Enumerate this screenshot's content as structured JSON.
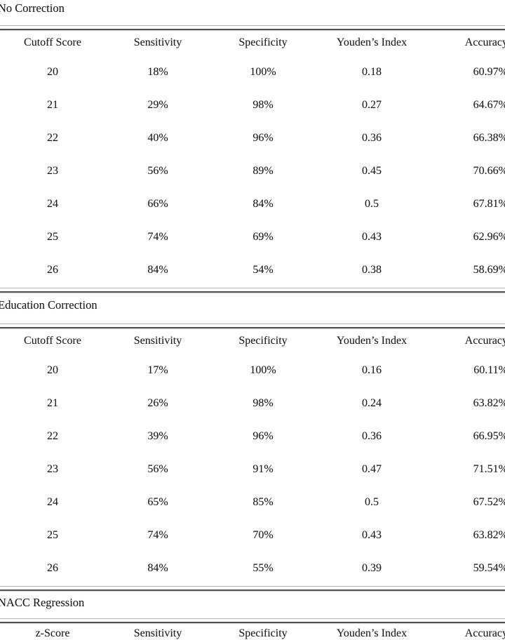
{
  "page": {
    "background": "#ffffff",
    "text_color": "#1d1d1d",
    "rule_light_color": "#b4b4b4",
    "rule_dark_color": "#505050"
  },
  "sections": [
    {
      "title": "No Correction",
      "columns": [
        "Cutoff Score",
        "Sensitivity",
        "Specificity",
        "Youden’s Index",
        "Accuracy"
      ],
      "rows": [
        [
          "20",
          "18%",
          "100%",
          "0.18",
          "60.97%"
        ],
        [
          "21",
          "29%",
          "98%",
          "0.27",
          "64.67%"
        ],
        [
          "22",
          "40%",
          "96%",
          "0.36",
          "66.38%"
        ],
        [
          "23",
          "56%",
          "89%",
          "0.45",
          "70.66%"
        ],
        [
          "24",
          "66%",
          "84%",
          "0.5",
          "67.81%"
        ],
        [
          "25",
          "74%",
          "69%",
          "0.43",
          "62.96%"
        ],
        [
          "26",
          "84%",
          "54%",
          "0.38",
          "58.69%"
        ]
      ]
    },
    {
      "title": "Education Correction",
      "columns": [
        "Cutoff Score",
        "Sensitivity",
        "Specificity",
        "Youden’s Index",
        "Accuracy"
      ],
      "rows": [
        [
          "20",
          "17%",
          "100%",
          "0.16",
          "60.11%"
        ],
        [
          "21",
          "26%",
          "98%",
          "0.24",
          "63.82%"
        ],
        [
          "22",
          "39%",
          "96%",
          "0.36",
          "66.95%"
        ],
        [
          "23",
          "56%",
          "91%",
          "0.47",
          "71.51%"
        ],
        [
          "24",
          "65%",
          "85%",
          "0.5",
          "67.52%"
        ],
        [
          "25",
          "74%",
          "70%",
          "0.43",
          "63.82%"
        ],
        [
          "26",
          "84%",
          "55%",
          "0.39",
          "59.54%"
        ]
      ]
    },
    {
      "title": "NACC Regression",
      "columns": [
        "z-Score",
        "Sensitivity",
        "Specificity",
        "Youden’s Index",
        "Accuracy"
      ],
      "rows": []
    }
  ]
}
